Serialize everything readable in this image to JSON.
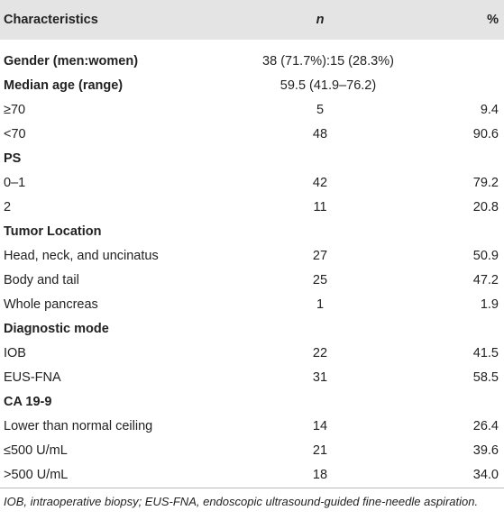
{
  "table": {
    "header": [
      "Characteristics",
      "n",
      "%"
    ],
    "rows": [
      {
        "label": "Gender (men:women)",
        "span": "38 (71.7%):15 (28.3%)"
      },
      {
        "label": "Median age (range)",
        "span": "59.5 (41.9–76.2)"
      },
      {
        "label": "≥70",
        "n": "5",
        "pct": "9.4"
      },
      {
        "label": "<70",
        "n": "48",
        "pct": "90.6"
      },
      {
        "heading": "PS"
      },
      {
        "label": "0–1",
        "n": "42",
        "pct": "79.2"
      },
      {
        "label": "2",
        "n": "11",
        "pct": "20.8"
      },
      {
        "heading": "Tumor Location"
      },
      {
        "label": "Head, neck, and uncinatus",
        "n": "27",
        "pct": "50.9"
      },
      {
        "label": "Body and tail",
        "n": "25",
        "pct": "47.2"
      },
      {
        "label": "Whole pancreas",
        "n": "1",
        "pct": "1.9"
      },
      {
        "heading": "Diagnostic mode"
      },
      {
        "label": "IOB",
        "n": "22",
        "pct": "41.5"
      },
      {
        "label": "EUS-FNA",
        "n": "31",
        "pct": "58.5"
      },
      {
        "heading": "CA 19-9"
      },
      {
        "label": "Lower than normal ceiling",
        "n": "14",
        "pct": "26.4"
      },
      {
        "label": "≤500 U/mL",
        "n": "21",
        "pct": "39.6"
      },
      {
        "label": ">500 U/mL",
        "n": "18",
        "pct": "34.0"
      }
    ],
    "footnote": "IOB, intraoperative biopsy; EUS-FNA, endoscopic ultrasound-guided fine-needle aspiration."
  }
}
